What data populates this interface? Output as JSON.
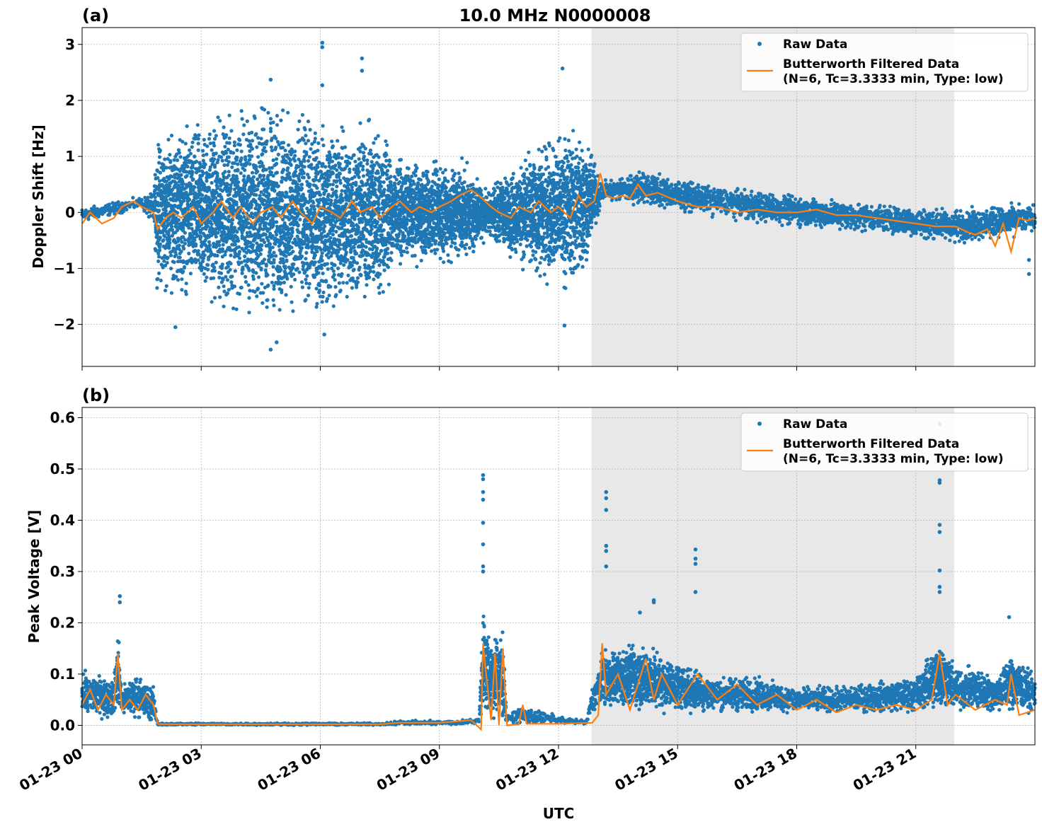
{
  "figure": {
    "title": "10.0 MHz N0000008",
    "xlabel": "UTC"
  },
  "colors": {
    "raw": "#1f77b4",
    "filtered": "#ff7f0e",
    "shade": "#e8e8e8",
    "grid": "#b0b0b0"
  },
  "chart_data": [
    {
      "type": "scatter",
      "panel_label": "(a)",
      "ylabel": "Doppler Shift [Hz]",
      "xlim": [
        0,
        24
      ],
      "ylim": [
        -2.75,
        3.3
      ],
      "yticks": [
        3,
        2,
        1,
        0,
        -1,
        -2
      ],
      "ytick_labels": [
        "3",
        "2",
        "1",
        "0",
        "−1",
        "−2"
      ],
      "grid": true,
      "legend_position": "upper right",
      "shaded_interval_utc_hours": [
        12.83,
        21.97
      ],
      "series": [
        {
          "name": "Raw Data",
          "kind": "points",
          "spread_band": {
            "x": [
              0,
              1.5,
              1.8,
              1.9,
              4.5,
              6.0,
              7.7,
              7.8,
              9.5,
              10.3,
              10.5,
              11.5,
              12.5,
              13.1,
              14.0,
              16.0,
              18.0,
              20.0,
              22.0,
              24.0
            ],
            "low": [
              -0.2,
              0.05,
              -0.3,
              -1.5,
              -2.1,
              -2.0,
              -1.8,
              -1.0,
              -1.0,
              -0.5,
              -0.7,
              -1.3,
              -1.6,
              0.15,
              0.1,
              -0.1,
              -0.3,
              -0.4,
              -0.6,
              -0.4
            ],
            "high": [
              0.1,
              0.3,
              0.4,
              1.5,
              2.2,
              1.8,
              1.8,
              1.0,
              1.0,
              0.5,
              0.7,
              1.3,
              1.8,
              0.6,
              0.8,
              0.5,
              0.35,
              0.2,
              0.1,
              0.2
            ]
          },
          "outliers": [
            {
              "x": 6.05,
              "y": 3.03
            },
            {
              "x": 6.05,
              "y": 2.95
            },
            {
              "x": 7.05,
              "y": 2.75
            },
            {
              "x": 7.05,
              "y": 2.53
            },
            {
              "x": 4.75,
              "y": 2.37
            },
            {
              "x": 6.05,
              "y": 2.27
            },
            {
              "x": 12.1,
              "y": 2.57
            },
            {
              "x": 4.75,
              "y": -2.45
            },
            {
              "x": 4.9,
              "y": -2.32
            },
            {
              "x": 2.35,
              "y": -2.05
            },
            {
              "x": 12.15,
              "y": -2.02
            },
            {
              "x": 6.1,
              "y": -2.18
            },
            {
              "x": 23.85,
              "y": -1.1
            },
            {
              "x": 23.85,
              "y": -0.85
            }
          ]
        },
        {
          "name": "Butterworth Filtered Data\n(N=6, Tc=3.3333 min, Type: low)",
          "kind": "line",
          "x": [
            0,
            0.2,
            0.5,
            0.8,
            1.0,
            1.3,
            1.5,
            1.8,
            1.9,
            2.1,
            2.3,
            2.5,
            2.8,
            3.0,
            3.3,
            3.5,
            3.8,
            4.0,
            4.3,
            4.5,
            4.8,
            5.0,
            5.3,
            5.5,
            5.8,
            6.0,
            6.3,
            6.5,
            6.8,
            7.0,
            7.3,
            7.5,
            7.8,
            8.0,
            8.3,
            8.5,
            8.8,
            9.0,
            9.3,
            9.5,
            9.8,
            10.0,
            10.3,
            10.5,
            10.8,
            11.0,
            11.3,
            11.5,
            11.8,
            12.0,
            12.3,
            12.5,
            12.7,
            12.9,
            13.05,
            13.2,
            13.4,
            13.6,
            13.8,
            14.0,
            14.2,
            14.5,
            15.0,
            15.5,
            16.0,
            16.5,
            17.0,
            17.5,
            18.0,
            18.5,
            19.0,
            19.5,
            20.0,
            20.5,
            21.0,
            21.5,
            22.0,
            22.3,
            22.5,
            22.8,
            23.0,
            23.2,
            23.4,
            23.6,
            23.8,
            24.0
          ],
          "y": [
            -0.2,
            0.0,
            -0.2,
            -0.1,
            0.1,
            0.2,
            0.1,
            0.0,
            -0.3,
            -0.1,
            0.0,
            -0.1,
            0.1,
            -0.2,
            0.0,
            0.2,
            -0.1,
            0.1,
            -0.2,
            0.0,
            0.1,
            -0.1,
            0.2,
            0.0,
            -0.2,
            0.1,
            0.0,
            -0.1,
            0.2,
            0.0,
            0.1,
            -0.1,
            0.1,
            0.2,
            0.0,
            0.1,
            0.0,
            0.1,
            0.2,
            0.3,
            0.4,
            0.3,
            0.1,
            0.0,
            -0.1,
            0.1,
            0.0,
            0.2,
            0.0,
            0.1,
            -0.1,
            0.3,
            0.1,
            0.2,
            0.7,
            0.3,
            0.25,
            0.3,
            0.25,
            0.5,
            0.3,
            0.35,
            0.2,
            0.1,
            0.1,
            0.0,
            0.05,
            0.0,
            0.0,
            0.05,
            -0.05,
            -0.05,
            -0.1,
            -0.15,
            -0.2,
            -0.25,
            -0.25,
            -0.35,
            -0.4,
            -0.3,
            -0.6,
            -0.2,
            -0.7,
            -0.1,
            -0.15,
            -0.1
          ]
        }
      ]
    },
    {
      "type": "scatter",
      "panel_label": "(b)",
      "ylabel": "Peak Voltage [V]",
      "xlim": [
        0,
        24
      ],
      "ylim": [
        -0.038,
        0.62
      ],
      "yticks": [
        0.6,
        0.5,
        0.4,
        0.3,
        0.2,
        0.1,
        0.0
      ],
      "ytick_labels": [
        "0.6",
        "0.5",
        "0.4",
        "0.3",
        "0.2",
        "0.1",
        "0.0"
      ],
      "xticks": [
        0,
        3,
        6,
        9,
        12,
        15,
        18,
        21
      ],
      "xtick_labels": [
        "01-23 00",
        "01-23 03",
        "01-23 06",
        "01-23 09",
        "01-23 12",
        "01-23 15",
        "01-23 18",
        "01-23 21"
      ],
      "grid": true,
      "legend_position": "upper right",
      "shaded_interval_utc_hours": [
        12.83,
        21.97
      ],
      "series": [
        {
          "name": "Raw Data",
          "kind": "points",
          "spread_band": {
            "x": [
              0,
              0.8,
              0.9,
              1.0,
              1.3,
              1.8,
              1.9,
              7.5,
              8.0,
              9.5,
              10.0,
              10.1,
              10.3,
              10.6,
              10.7,
              11.0,
              12.7,
              12.85,
              13.1,
              14.0,
              15.0,
              16.0,
              17.0,
              18.0,
              19.0,
              20.0,
              21.0,
              21.6,
              22.0,
              22.5,
              23.0,
              23.4,
              24.0
            ],
            "low": [
              0.01,
              0.01,
              0.02,
              0.01,
              0.01,
              0.0,
              0.0,
              0.0,
              0.0,
              0.0,
              0.0,
              0.01,
              0.0,
              0.0,
              0.0,
              0.0,
              0.0,
              0.02,
              0.03,
              0.02,
              0.02,
              0.02,
              0.02,
              0.02,
              0.02,
              0.02,
              0.02,
              0.02,
              0.02,
              0.02,
              0.02,
              0.02,
              0.02
            ],
            "high": [
              0.11,
              0.1,
              0.2,
              0.08,
              0.11,
              0.08,
              0.005,
              0.005,
              0.01,
              0.01,
              0.02,
              0.25,
              0.18,
              0.19,
              0.02,
              0.04,
              0.01,
              0.08,
              0.15,
              0.17,
              0.13,
              0.1,
              0.1,
              0.08,
              0.08,
              0.09,
              0.1,
              0.18,
              0.12,
              0.12,
              0.1,
              0.15,
              0.1
            ]
          },
          "outliers": [
            {
              "x": 10.1,
              "y": 0.488
            },
            {
              "x": 10.1,
              "y": 0.48
            },
            {
              "x": 10.1,
              "y": 0.455
            },
            {
              "x": 10.1,
              "y": 0.44
            },
            {
              "x": 10.1,
              "y": 0.395
            },
            {
              "x": 10.1,
              "y": 0.353
            },
            {
              "x": 10.1,
              "y": 0.31
            },
            {
              "x": 10.1,
              "y": 0.3
            },
            {
              "x": 13.2,
              "y": 0.455
            },
            {
              "x": 13.2,
              "y": 0.443
            },
            {
              "x": 13.2,
              "y": 0.42
            },
            {
              "x": 13.2,
              "y": 0.35
            },
            {
              "x": 13.2,
              "y": 0.34
            },
            {
              "x": 13.2,
              "y": 0.31
            },
            {
              "x": 15.45,
              "y": 0.343
            },
            {
              "x": 15.45,
              "y": 0.325
            },
            {
              "x": 15.45,
              "y": 0.315
            },
            {
              "x": 15.45,
              "y": 0.26
            },
            {
              "x": 21.6,
              "y": 0.588
            },
            {
              "x": 21.6,
              "y": 0.478
            },
            {
              "x": 21.6,
              "y": 0.473
            },
            {
              "x": 21.6,
              "y": 0.391
            },
            {
              "x": 21.6,
              "y": 0.377
            },
            {
              "x": 21.6,
              "y": 0.302
            },
            {
              "x": 21.6,
              "y": 0.27
            },
            {
              "x": 21.6,
              "y": 0.26
            },
            {
              "x": 0.95,
              "y": 0.252
            },
            {
              "x": 0.95,
              "y": 0.24
            },
            {
              "x": 14.4,
              "y": 0.244
            },
            {
              "x": 14.4,
              "y": 0.24
            },
            {
              "x": 23.35,
              "y": 0.211
            },
            {
              "x": 14.05,
              "y": 0.22
            }
          ]
        },
        {
          "name": "Butterworth Filtered Data\n(N=6, Tc=3.3333 min, Type: low)",
          "kind": "line",
          "x": [
            0,
            0.2,
            0.4,
            0.6,
            0.8,
            0.9,
            1.0,
            1.2,
            1.4,
            1.6,
            1.8,
            1.9,
            2.0,
            7.5,
            8.0,
            9.0,
            9.8,
            10.05,
            10.1,
            10.15,
            10.3,
            10.4,
            10.5,
            10.6,
            10.7,
            11.0,
            11.1,
            11.2,
            12.0,
            12.85,
            13.0,
            13.1,
            13.2,
            13.5,
            13.8,
            14.0,
            14.2,
            14.4,
            14.6,
            15.0,
            15.5,
            16.0,
            16.5,
            17.0,
            17.5,
            18.0,
            18.5,
            19.0,
            19.5,
            20.0,
            20.5,
            21.0,
            21.4,
            21.6,
            21.8,
            22.0,
            22.5,
            23.0,
            23.3,
            23.4,
            23.6,
            24.0
          ],
          "y": [
            0.04,
            0.07,
            0.03,
            0.06,
            0.04,
            0.14,
            0.03,
            0.05,
            0.03,
            0.06,
            0.04,
            0.003,
            0.002,
            0.002,
            0.005,
            0.005,
            0.01,
            -0.008,
            0.16,
            0.12,
            0.01,
            0.14,
            0.0,
            0.15,
            0.0,
            0.002,
            0.04,
            0.003,
            0.003,
            0.005,
            0.02,
            0.16,
            0.06,
            0.1,
            0.03,
            0.08,
            0.13,
            0.05,
            0.1,
            0.04,
            0.1,
            0.05,
            0.08,
            0.04,
            0.06,
            0.03,
            0.05,
            0.025,
            0.04,
            0.03,
            0.04,
            0.03,
            0.05,
            0.14,
            0.04,
            0.06,
            0.03,
            0.05,
            0.04,
            0.1,
            0.02,
            0.03
          ]
        }
      ]
    }
  ]
}
